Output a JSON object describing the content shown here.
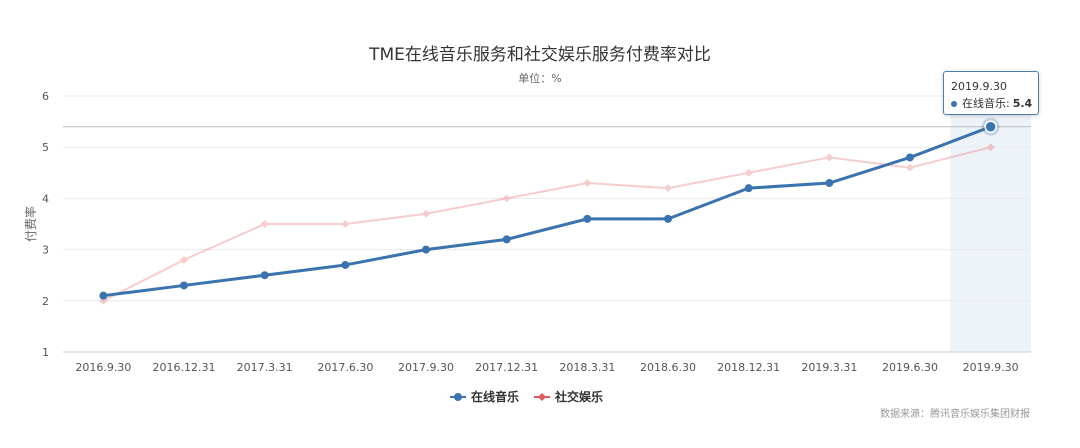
{
  "chart_data": {
    "type": "line",
    "title": "TME在线音乐服务和社交娱乐服务付费率对比",
    "subtitle": "单位：%",
    "ylabel": "付费率",
    "ylim": [
      1,
      6
    ],
    "yticks": [
      "1",
      "2",
      "3",
      "4",
      "5",
      "6"
    ],
    "categories": [
      "2016.9.30",
      "2016.12.31",
      "2017.3.31",
      "2017.6.30",
      "2017.9.30",
      "2017.12.31",
      "2018.3.31",
      "2018.6.30",
      "2018.12.31",
      "2019.3.31",
      "2019.6.30",
      "2019.9.30"
    ],
    "series": [
      {
        "name": "在线音乐",
        "color": "#3a73ad",
        "values": [
          2.1,
          2.3,
          2.5,
          2.7,
          3.0,
          3.2,
          3.6,
          3.6,
          4.2,
          4.3,
          4.8,
          5.4
        ]
      },
      {
        "name": "社交娱乐",
        "color": "#e45a5a",
        "values": [
          2.0,
          2.8,
          3.5,
          3.5,
          3.7,
          4.0,
          4.3,
          4.2,
          4.5,
          4.8,
          4.6,
          5.0
        ]
      }
    ],
    "legend_position": "bottom-center",
    "grid": true,
    "highlight_index": 11,
    "tooltip": {
      "date": "2019.9.30",
      "label": "在线音乐:",
      "value": "5.4"
    },
    "source": "数据来源：腾讯音乐娱乐集团财报"
  }
}
